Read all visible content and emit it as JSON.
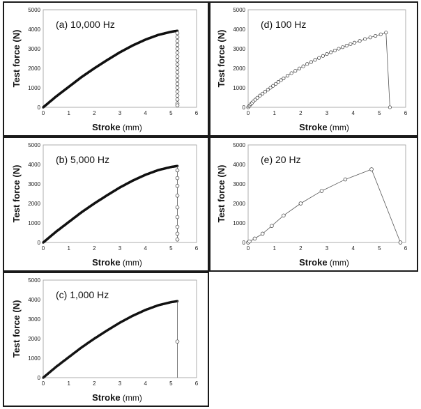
{
  "chart_data": [
    {
      "type": "scatter",
      "title": "(a) 10,000 Hz",
      "xlabel": "Stroke",
      "xunit": "(mm)",
      "ylabel": "Test force (N)",
      "xlim": [
        0,
        6
      ],
      "ylim": [
        0,
        5000
      ],
      "xticks": [
        "0",
        "1",
        "2",
        "3",
        "4",
        "5",
        "6"
      ],
      "yticks": [
        "0",
        "1000",
        "2000",
        "3000",
        "4000",
        "5000"
      ],
      "series": [
        {
          "rise_x": [
            0,
            0.5,
            1,
            1.5,
            2,
            2.5,
            3,
            3.5,
            4,
            4.5,
            5,
            5.25
          ],
          "rise_y": [
            0,
            550,
            1050,
            1550,
            2000,
            2420,
            2820,
            3170,
            3470,
            3710,
            3870,
            3920
          ],
          "n_rise_markers": 220,
          "marker_size": 1.3,
          "drop_x": 5.25,
          "drop_y": [
            3800,
            3600,
            3400,
            3200,
            3000,
            2800,
            2600,
            2400,
            2200,
            2000,
            1800,
            1600,
            1400,
            1200,
            1000,
            800,
            600,
            400,
            200,
            100
          ]
        }
      ]
    },
    {
      "type": "scatter",
      "title": "(b) 5,000 Hz",
      "xlabel": "Stroke",
      "xunit": "(mm)",
      "ylabel": "Test force (N)",
      "xlim": [
        0,
        6
      ],
      "ylim": [
        0,
        5000
      ],
      "xticks": [
        "0",
        "1",
        "2",
        "3",
        "4",
        "5",
        "6"
      ],
      "yticks": [
        "0",
        "1000",
        "2000",
        "3000",
        "4000",
        "5000"
      ],
      "series": [
        {
          "rise_x": [
            0,
            0.5,
            1,
            1.5,
            2,
            2.5,
            3,
            3.5,
            4,
            4.5,
            5,
            5.25
          ],
          "rise_y": [
            0,
            550,
            1050,
            1550,
            2000,
            2420,
            2820,
            3170,
            3470,
            3710,
            3870,
            3920
          ],
          "n_rise_markers": 200,
          "marker_size": 1.3,
          "drop_x": 5.25,
          "drop_y": [
            3700,
            3300,
            2900,
            2400,
            1800,
            1300,
            800,
            450,
            150
          ]
        }
      ]
    },
    {
      "type": "scatter",
      "title": "(c) 1,000 Hz",
      "xlabel": "Stroke",
      "xunit": "(mm)",
      "ylabel": "Test force (N)",
      "xlim": [
        0,
        6
      ],
      "ylim": [
        0,
        5000
      ],
      "xticks": [
        "0",
        "1",
        "2",
        "3",
        "4",
        "5",
        "6"
      ],
      "yticks": [
        "0",
        "1000",
        "2000",
        "3000",
        "4000",
        "5000"
      ],
      "series": [
        {
          "rise_x": [
            0,
            0.5,
            1,
            1.5,
            2,
            2.5,
            3,
            3.5,
            4,
            4.5,
            5,
            5.25
          ],
          "rise_y": [
            0,
            550,
            1050,
            1550,
            2000,
            2420,
            2820,
            3170,
            3470,
            3710,
            3870,
            3920
          ],
          "n_rise_markers": 150,
          "marker_size": 1.3,
          "drop_x": 5.25,
          "drop_y": [
            1850
          ],
          "drop_end_y": 0
        }
      ]
    },
    {
      "type": "line",
      "title": "(d) 100 Hz",
      "xlabel": "Stroke",
      "xunit": "(mm)",
      "ylabel": "Test force (N)",
      "xlim": [
        0,
        6
      ],
      "ylim": [
        0,
        5000
      ],
      "xticks": [
        "0",
        "1",
        "2",
        "3",
        "4",
        "5",
        "6"
      ],
      "yticks": [
        "0",
        "1000",
        "2000",
        "3000",
        "4000",
        "5000"
      ],
      "series": [
        {
          "x": [
            0,
            0.03,
            0.06,
            0.1,
            0.15,
            0.2,
            0.27,
            0.35,
            0.45,
            0.55,
            0.65,
            0.75,
            0.85,
            0.95,
            1.05,
            1.15,
            1.25,
            1.35,
            1.5,
            1.65,
            1.8,
            1.95,
            2.1,
            2.25,
            2.4,
            2.55,
            2.7,
            2.85,
            3.0,
            3.15,
            3.3,
            3.45,
            3.6,
            3.75,
            3.9,
            4.05,
            4.25,
            4.45,
            4.65,
            4.85,
            5.05,
            5.25,
            5.4
          ],
          "y": [
            0,
            50,
            100,
            160,
            230,
            300,
            390,
            490,
            600,
            700,
            800,
            900,
            1000,
            1100,
            1200,
            1300,
            1390,
            1480,
            1620,
            1750,
            1870,
            1990,
            2100,
            2220,
            2320,
            2430,
            2530,
            2630,
            2730,
            2820,
            2910,
            3000,
            3080,
            3160,
            3240,
            3310,
            3400,
            3500,
            3580,
            3660,
            3740,
            3830,
            0
          ],
          "marker_size": 2.2
        }
      ]
    },
    {
      "type": "line",
      "title": "(e) 20 Hz",
      "xlabel": "Stroke",
      "xunit": "(mm)",
      "ylabel": "Test force (N)",
      "xlim": [
        0,
        6
      ],
      "ylim": [
        0,
        5000
      ],
      "xticks": [
        "0",
        "1",
        "2",
        "3",
        "4",
        "5",
        "6"
      ],
      "yticks": [
        "0",
        "1000",
        "2000",
        "3000",
        "4000",
        "5000"
      ],
      "series": [
        {
          "x": [
            0,
            0.05,
            0.25,
            0.55,
            0.9,
            1.35,
            2.0,
            2.8,
            3.7,
            4.7,
            5.8
          ],
          "y": [
            0,
            50,
            200,
            450,
            850,
            1380,
            2000,
            2640,
            3230,
            3750,
            0
          ],
          "marker_size": 2.4
        }
      ]
    }
  ]
}
